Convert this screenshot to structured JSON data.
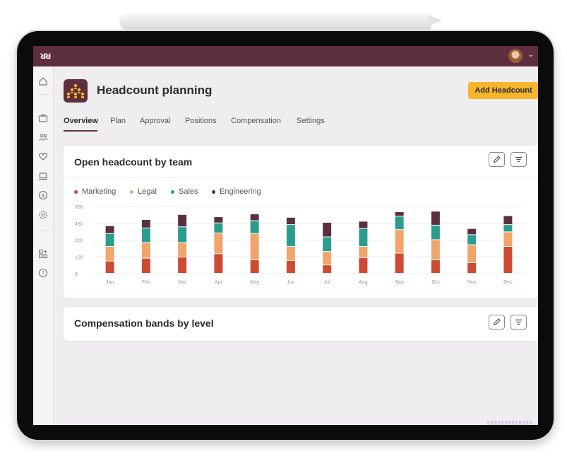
{
  "app": {
    "logo_text": "ᴚᴚ",
    "page_title": "Headcount planning",
    "add_button_label": "Add Headcount"
  },
  "sidebar": {
    "items": [
      {
        "icon": "home-icon",
        "glyph": "⌂"
      },
      {
        "icon": "briefcase-icon",
        "glyph": "▭"
      },
      {
        "icon": "people-icon",
        "glyph": "⚇"
      },
      {
        "icon": "heart-icon",
        "glyph": "♡"
      },
      {
        "icon": "laptop-icon",
        "glyph": "▭"
      },
      {
        "icon": "dollar-icon",
        "glyph": "$"
      },
      {
        "icon": "settings-icon",
        "glyph": "⚙"
      },
      {
        "icon": "apps-icon",
        "glyph": "⊞"
      },
      {
        "icon": "help-icon",
        "glyph": "?"
      }
    ]
  },
  "tabs": [
    {
      "label": "Overview",
      "active": true
    },
    {
      "label": "Plan",
      "active": false
    },
    {
      "label": "Approval",
      "active": false
    },
    {
      "label": "Positions",
      "active": false
    },
    {
      "label": "Compensation",
      "active": false
    },
    {
      "label": "Settings",
      "active": false
    }
  ],
  "cards": {
    "headcount": {
      "title": "Open headcount by team"
    },
    "compensation": {
      "title": "Compensation bands by level"
    }
  },
  "colors": {
    "brand": "#5d2e3d",
    "accent": "#f7b52a",
    "marketing": "#cc4b32",
    "legal": "#f0a56b",
    "sales": "#2a9d8f",
    "engineering": "#5c2f3e"
  },
  "chart_data": {
    "type": "bar",
    "stacked": true,
    "categories": [
      "Jan",
      "Feb",
      "Mar",
      "Apr",
      "May",
      "Jun",
      "Jul",
      "Aug",
      "Sep",
      "Oct",
      "Nov",
      "Dec"
    ],
    "series": [
      {
        "name": "Marketing",
        "color": "#cc4b32",
        "values": [
          110,
          135,
          145,
          175,
          120,
          115,
          75,
          140,
          180,
          120,
          95,
          240
        ]
      },
      {
        "name": "Legal",
        "color": "#f0a56b",
        "values": [
          130,
          140,
          130,
          185,
          235,
          125,
          120,
          100,
          210,
          180,
          160,
          130
        ]
      },
      {
        "name": "Sales",
        "color": "#2a9d8f",
        "values": [
          115,
          130,
          140,
          90,
          115,
          195,
          130,
          160,
          120,
          130,
          90,
          65
        ]
      },
      {
        "name": "Engineering",
        "color": "#5c2f3e",
        "values": [
          70,
          75,
          110,
          55,
          60,
          65,
          130,
          65,
          40,
          125,
          55,
          80
        ]
      }
    ],
    "yticks": [
      "600",
      "450",
      "300",
      "150",
      "0"
    ],
    "ylim": [
      0,
      600
    ],
    "legend_position": "top-left",
    "grid": true
  }
}
